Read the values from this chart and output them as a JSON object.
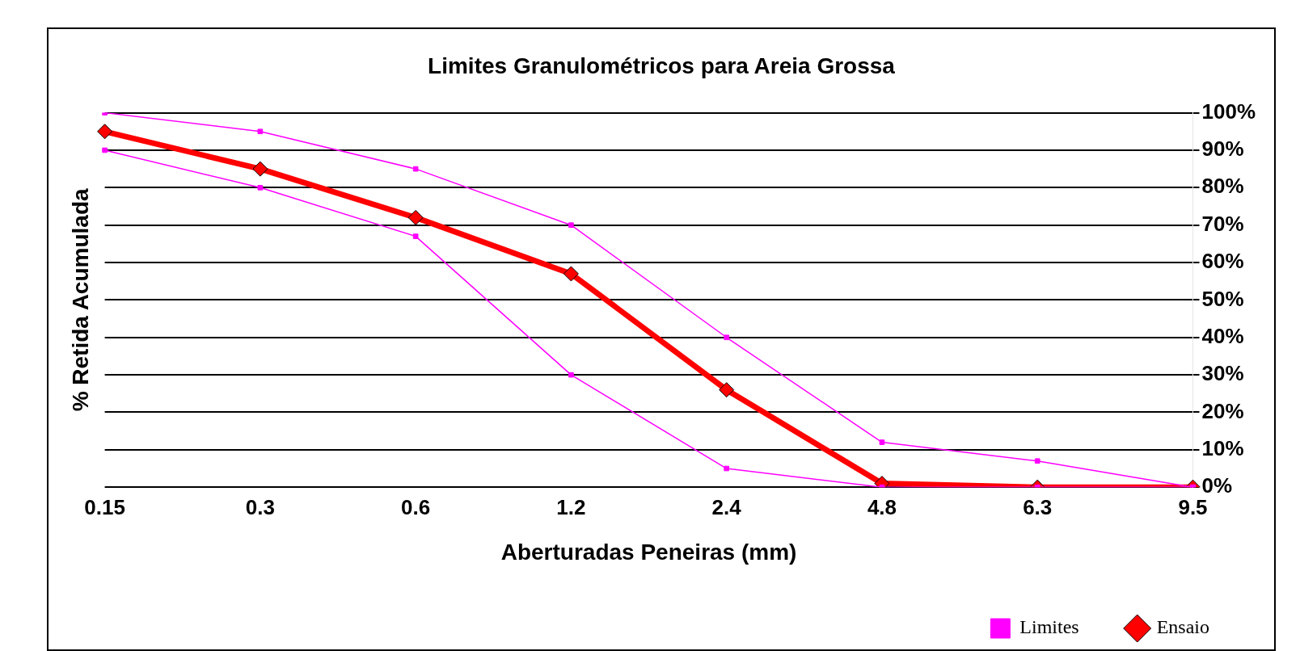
{
  "chart_data": {
    "type": "line",
    "title": "Limites Granulométricos para Areia Grossa",
    "xlabel": "Aberturadas Peneiras (mm)",
    "ylabel": "% Retida Acumulada",
    "categories": [
      "0.15",
      "0.3",
      "0.6",
      "1.2",
      "2.4",
      "4.8",
      "6.3",
      "9.5"
    ],
    "series": [
      {
        "name": "Limites",
        "color": "#ff00ff",
        "marker": "square",
        "values": [
          100,
          95,
          85,
          70,
          40,
          12,
          7,
          0
        ]
      },
      {
        "color": "#ff00ff",
        "marker": "square",
        "values": [
          90,
          80,
          67,
          30,
          5,
          0,
          0,
          0
        ]
      },
      {
        "name": "Ensaio",
        "color": "#ff0000",
        "marker": "diamond",
        "values": [
          95,
          85,
          72,
          57,
          26,
          1,
          0,
          0
        ]
      }
    ],
    "ylim": [
      0,
      100
    ],
    "yticks": [
      {
        "value": 0,
        "label": "0%"
      },
      {
        "value": 10,
        "label": "10%"
      },
      {
        "value": 20,
        "label": "20%"
      },
      {
        "value": 30,
        "label": "30%"
      },
      {
        "value": 40,
        "label": "40%"
      },
      {
        "value": 50,
        "label": "50%"
      },
      {
        "value": 60,
        "label": "60%"
      },
      {
        "value": 70,
        "label": "70%"
      },
      {
        "value": 80,
        "label": "80%"
      },
      {
        "value": 90,
        "label": "90%"
      },
      {
        "value": 100,
        "label": "100%"
      }
    ],
    "grid": "y",
    "legend": "bottom right"
  }
}
